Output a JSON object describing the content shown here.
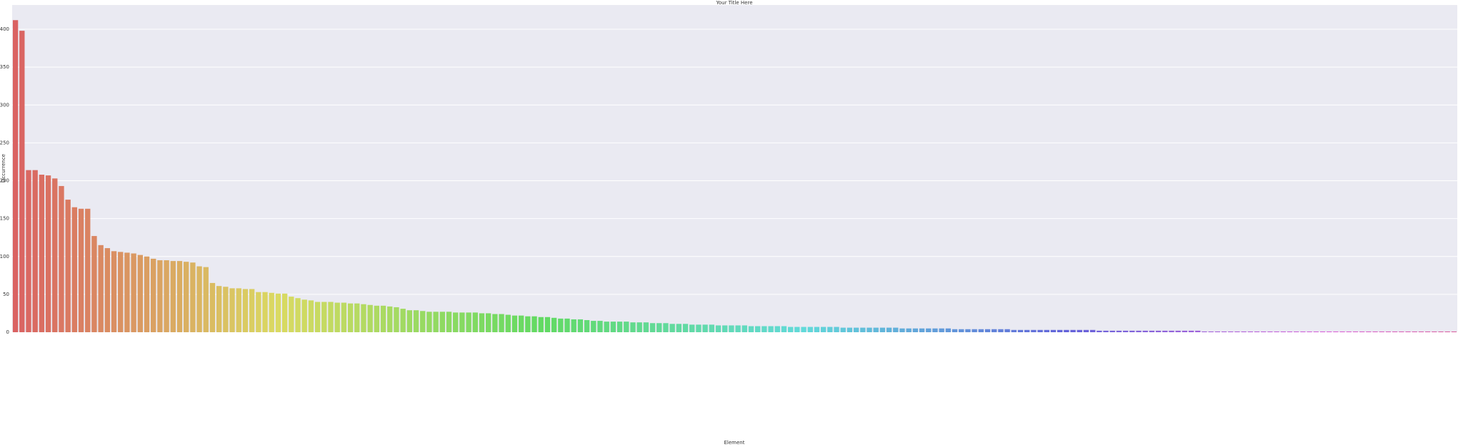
{
  "chart_data": {
    "type": "bar",
    "title": "Your Title Here",
    "x_label": "Element",
    "y_label": "Occurrence",
    "categories": [
      null,
      null,
      null,
      null,
      null,
      null,
      null,
      null,
      null,
      null,
      null,
      null,
      null,
      null,
      null,
      null,
      null,
      null,
      null,
      null,
      null,
      null,
      null,
      null,
      null,
      null,
      null,
      null,
      null,
      null,
      null,
      null,
      null,
      null,
      null,
      null,
      null,
      null,
      null,
      null,
      null,
      null,
      null,
      null,
      null,
      null,
      null,
      null,
      null,
      null,
      null,
      null,
      null,
      null,
      null,
      null,
      null,
      null,
      null,
      null,
      null,
      null,
      null,
      null,
      null,
      null,
      null,
      null,
      null,
      null,
      null,
      null,
      null,
      null,
      null,
      null,
      null,
      null,
      null,
      null,
      null,
      null,
      null,
      null,
      null,
      null,
      null,
      null,
      null,
      null,
      null,
      null,
      null,
      null,
      null,
      null,
      null,
      null,
      null,
      null,
      null,
      null,
      null,
      null,
      null,
      null,
      null,
      null,
      null,
      null,
      null,
      null,
      null,
      null,
      null,
      null,
      null,
      null,
      null,
      null,
      null,
      null,
      null,
      null,
      null,
      null,
      null,
      null,
      null,
      null,
      null,
      null,
      null,
      null,
      null,
      null,
      null,
      null,
      null,
      null,
      null,
      null,
      null,
      null,
      null,
      null,
      null,
      null,
      null,
      null,
      null,
      null,
      null,
      null,
      null,
      null,
      null,
      null,
      null,
      null,
      null,
      null,
      null,
      null,
      null,
      null,
      null,
      null,
      null,
      null,
      null,
      null,
      null,
      null,
      null,
      null,
      null,
      null,
      null,
      null,
      null,
      null,
      null,
      null,
      null,
      null,
      null,
      null,
      null,
      null,
      null,
      null,
      null,
      null,
      null,
      null,
      null,
      null,
      null,
      null,
      null,
      null,
      null,
      null,
      null,
      null,
      null,
      null,
      null,
      null,
      null,
      null,
      null,
      null,
      null,
      null,
      null,
      null,
      null,
      null
    ],
    "values": [
      412,
      398,
      214,
      214,
      208,
      207,
      203,
      193,
      175,
      165,
      163,
      163,
      127,
      115,
      111,
      107,
      106,
      105,
      104,
      102,
      100,
      97,
      95,
      95,
      94,
      94,
      93,
      92,
      87,
      86,
      65,
      61,
      60,
      58,
      58,
      57,
      57,
      53,
      53,
      52,
      51,
      51,
      47,
      45,
      43,
      42,
      40,
      40,
      40,
      39,
      39,
      38,
      38,
      37,
      36,
      35,
      35,
      34,
      33,
      31,
      29,
      29,
      28,
      27,
      27,
      27,
      27,
      26,
      26,
      26,
      26,
      25,
      25,
      24,
      24,
      23,
      22,
      22,
      21,
      21,
      20,
      20,
      19,
      18,
      18,
      17,
      17,
      16,
      15,
      15,
      14,
      14,
      14,
      14,
      13,
      13,
      13,
      12,
      12,
      12,
      11,
      11,
      11,
      10,
      10,
      10,
      10,
      9,
      9,
      9,
      9,
      9,
      8,
      8,
      8,
      8,
      8,
      8,
      7,
      7,
      7,
      7,
      7,
      7,
      7,
      7,
      6,
      6,
      6,
      6,
      6,
      6,
      6,
      6,
      6,
      5,
      5,
      5,
      5,
      5,
      5,
      5,
      5,
      4,
      4,
      4,
      4,
      4,
      4,
      4,
      4,
      4,
      3,
      3,
      3,
      3,
      3,
      3,
      3,
      3,
      3,
      3,
      3,
      3,
      3,
      2,
      2,
      2,
      2,
      2,
      2,
      2,
      2,
      2,
      2,
      2,
      2,
      2,
      2,
      2,
      2,
      1,
      1,
      1,
      1,
      1,
      1,
      1,
      1,
      1,
      1,
      1,
      1,
      1,
      1,
      1,
      1,
      1,
      1,
      1,
      1,
      1,
      1,
      1,
      1,
      1,
      1,
      1,
      1,
      1,
      1,
      1,
      1,
      1,
      1,
      1,
      1,
      1,
      1,
      1
    ],
    "palette": "husl",
    "ylim": [
      0,
      432
    ],
    "yticks": [
      0,
      50,
      100,
      150,
      200,
      250,
      300,
      350,
      400
    ],
    "grid": true
  }
}
